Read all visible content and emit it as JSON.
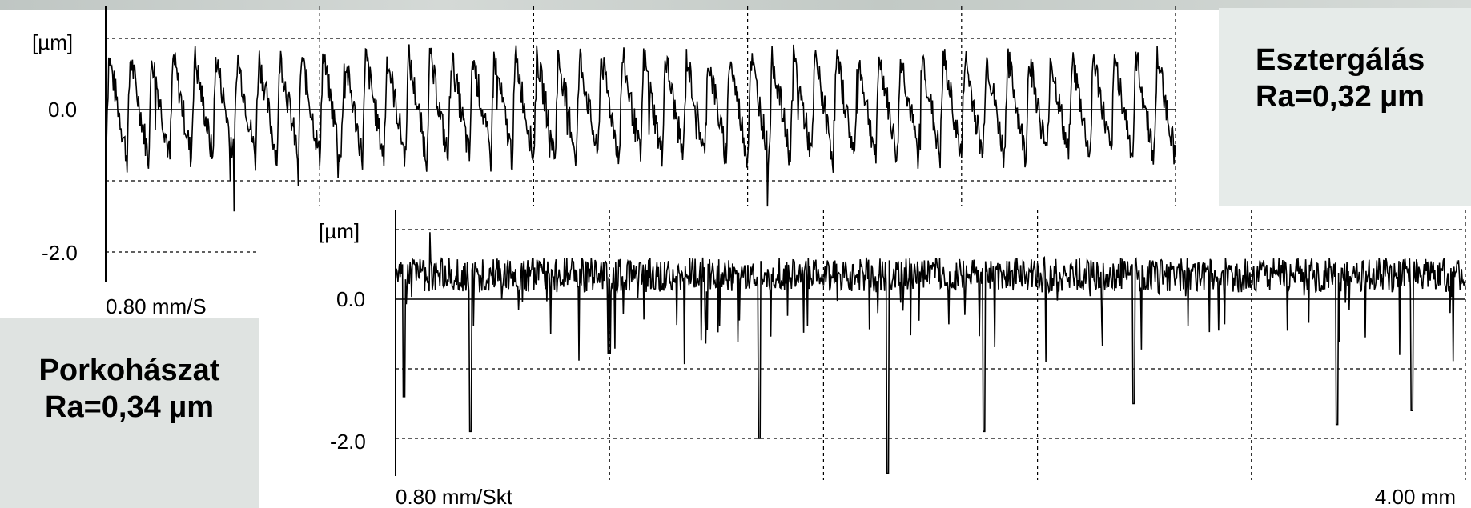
{
  "chart_data": [
    {
      "type": "line",
      "ylabel": "[µm]",
      "ytick_labels": [
        "0.0",
        "-2.0"
      ],
      "yticks": [
        0.0,
        -2.0
      ],
      "xscale_label": "0.80 mm/S",
      "annotation": {
        "line1": "Esztergálás",
        "line2": "Ra=0,32 µm"
      },
      "x_range_mm": [
        0,
        4.0
      ],
      "ylim": [
        -2.0,
        1.0
      ],
      "grid": true,
      "profile": {
        "period_mm": 0.08,
        "peak": 0.95,
        "valley": -0.85
      }
    },
    {
      "type": "line",
      "ylabel": "[µm]",
      "ytick_labels": [
        "0.0",
        "-2.0"
      ],
      "yticks": [
        0.0,
        -2.0
      ],
      "xscale_label": "0.80 mm/Skt",
      "xend_label": "4.00 mm",
      "annotation": {
        "line1": "Porkohászat",
        "line2": "Ra=0,34 µm"
      },
      "x_range_mm": [
        0,
        4.0
      ],
      "ylim": [
        -2.5,
        1.0
      ],
      "grid": true,
      "profile": {
        "plateau": 0.35,
        "deep_valleys": [
          -1.4,
          -1.9,
          -2.0,
          -2.5,
          -1.9,
          -1.5,
          -1.8,
          -1.6
        ]
      }
    }
  ]
}
